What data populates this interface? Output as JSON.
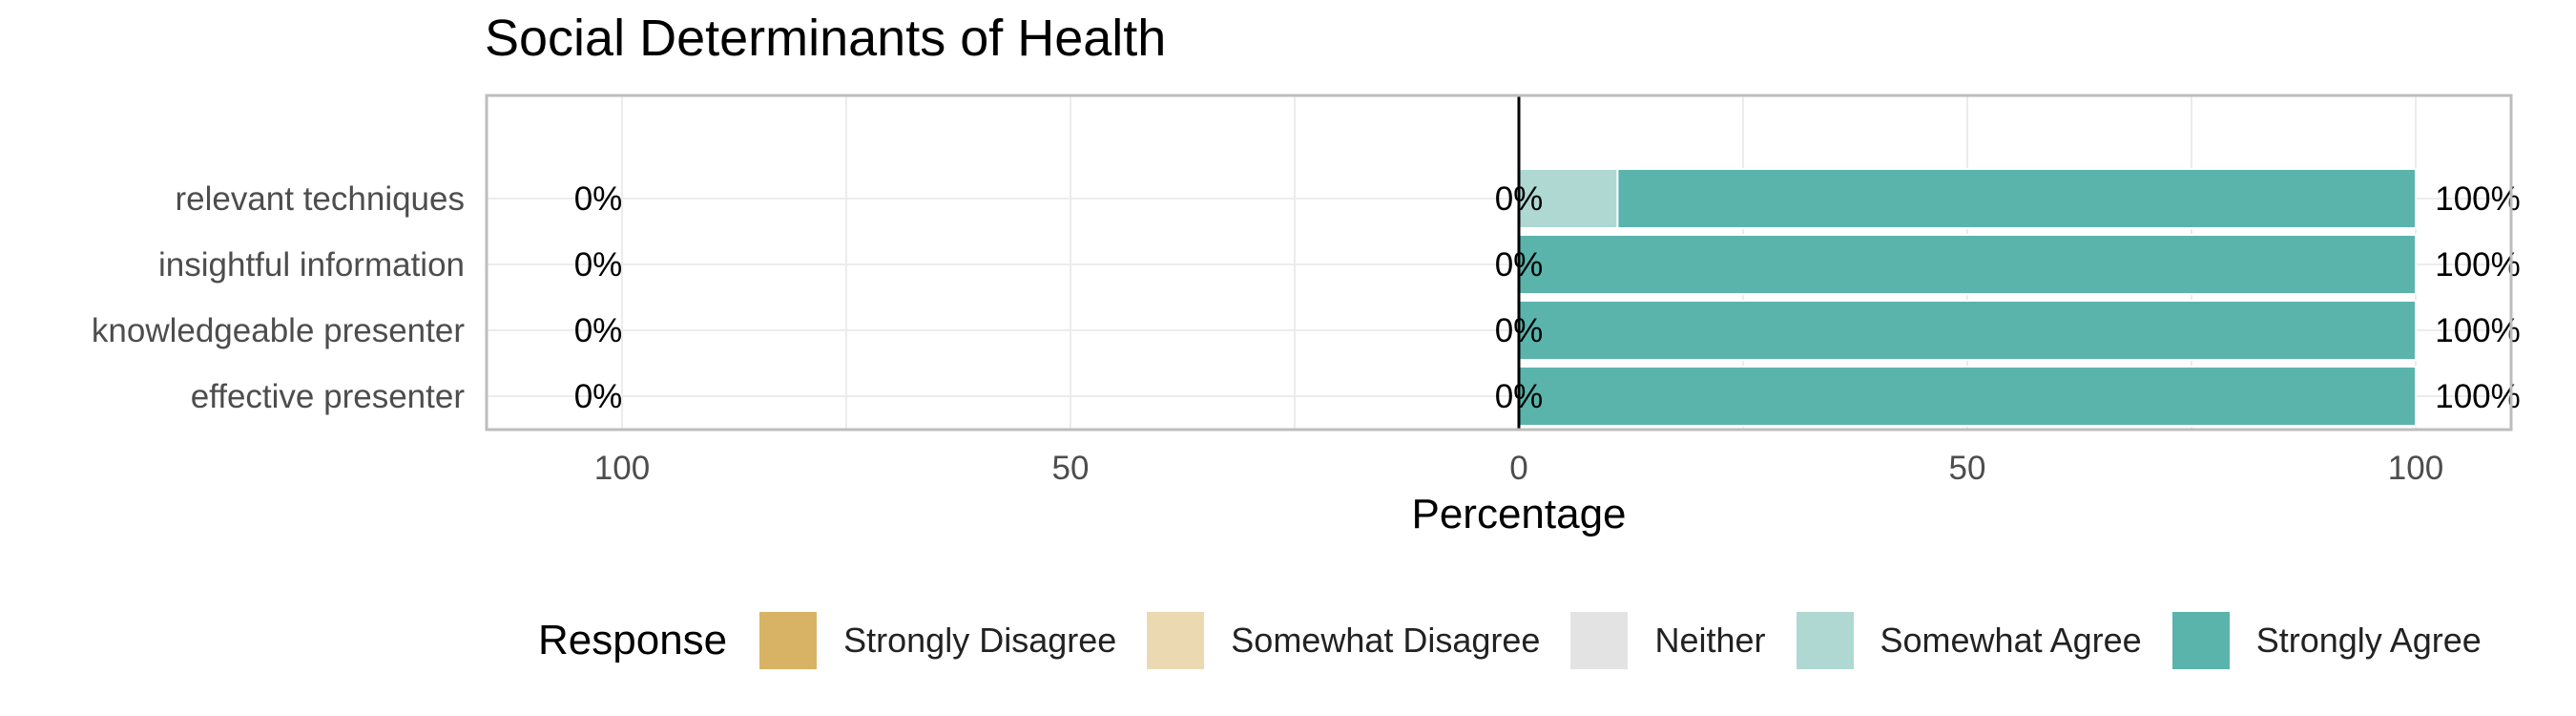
{
  "chart_data": {
    "type": "bar",
    "subtype": "diverging-stacked",
    "orientation": "horizontal",
    "title": "Social Determinants of Health",
    "xlabel": "Percentage",
    "ylabel": "",
    "xlim": [
      -100,
      100
    ],
    "x_ticks": [
      -100,
      -50,
      0,
      50,
      100
    ],
    "x_tick_labels": [
      "100",
      "50",
      "0",
      "50",
      "100"
    ],
    "grid": true,
    "categories": [
      "relevant techniques",
      "insightful information",
      "knowledgeable presenter",
      "effective presenter"
    ],
    "series": [
      {
        "name": "Strongly Disagree",
        "color": "#D8B365",
        "values": [
          0,
          0,
          0,
          0
        ]
      },
      {
        "name": "Somewhat Disagree",
        "color": "#EBD9B2",
        "values": [
          0,
          0,
          0,
          0
        ]
      },
      {
        "name": "Neither",
        "color": "#E3E3E3",
        "values": [
          0,
          0,
          0,
          0
        ]
      },
      {
        "name": "Somewhat Agree",
        "color": "#AFD8D3",
        "values": [
          11,
          0,
          0,
          0
        ]
      },
      {
        "name": "Strongly Agree",
        "color": "#5AB4AC",
        "values": [
          89,
          100,
          100,
          100
        ]
      }
    ],
    "labels_left": [
      "0%",
      "0%",
      "0%",
      "0%"
    ],
    "labels_center": [
      "0%",
      "0%",
      "0%",
      "0%"
    ],
    "labels_right": [
      "100%",
      "100%",
      "100%",
      "100%"
    ],
    "legend": {
      "title": "Response",
      "position": "bottom"
    }
  }
}
